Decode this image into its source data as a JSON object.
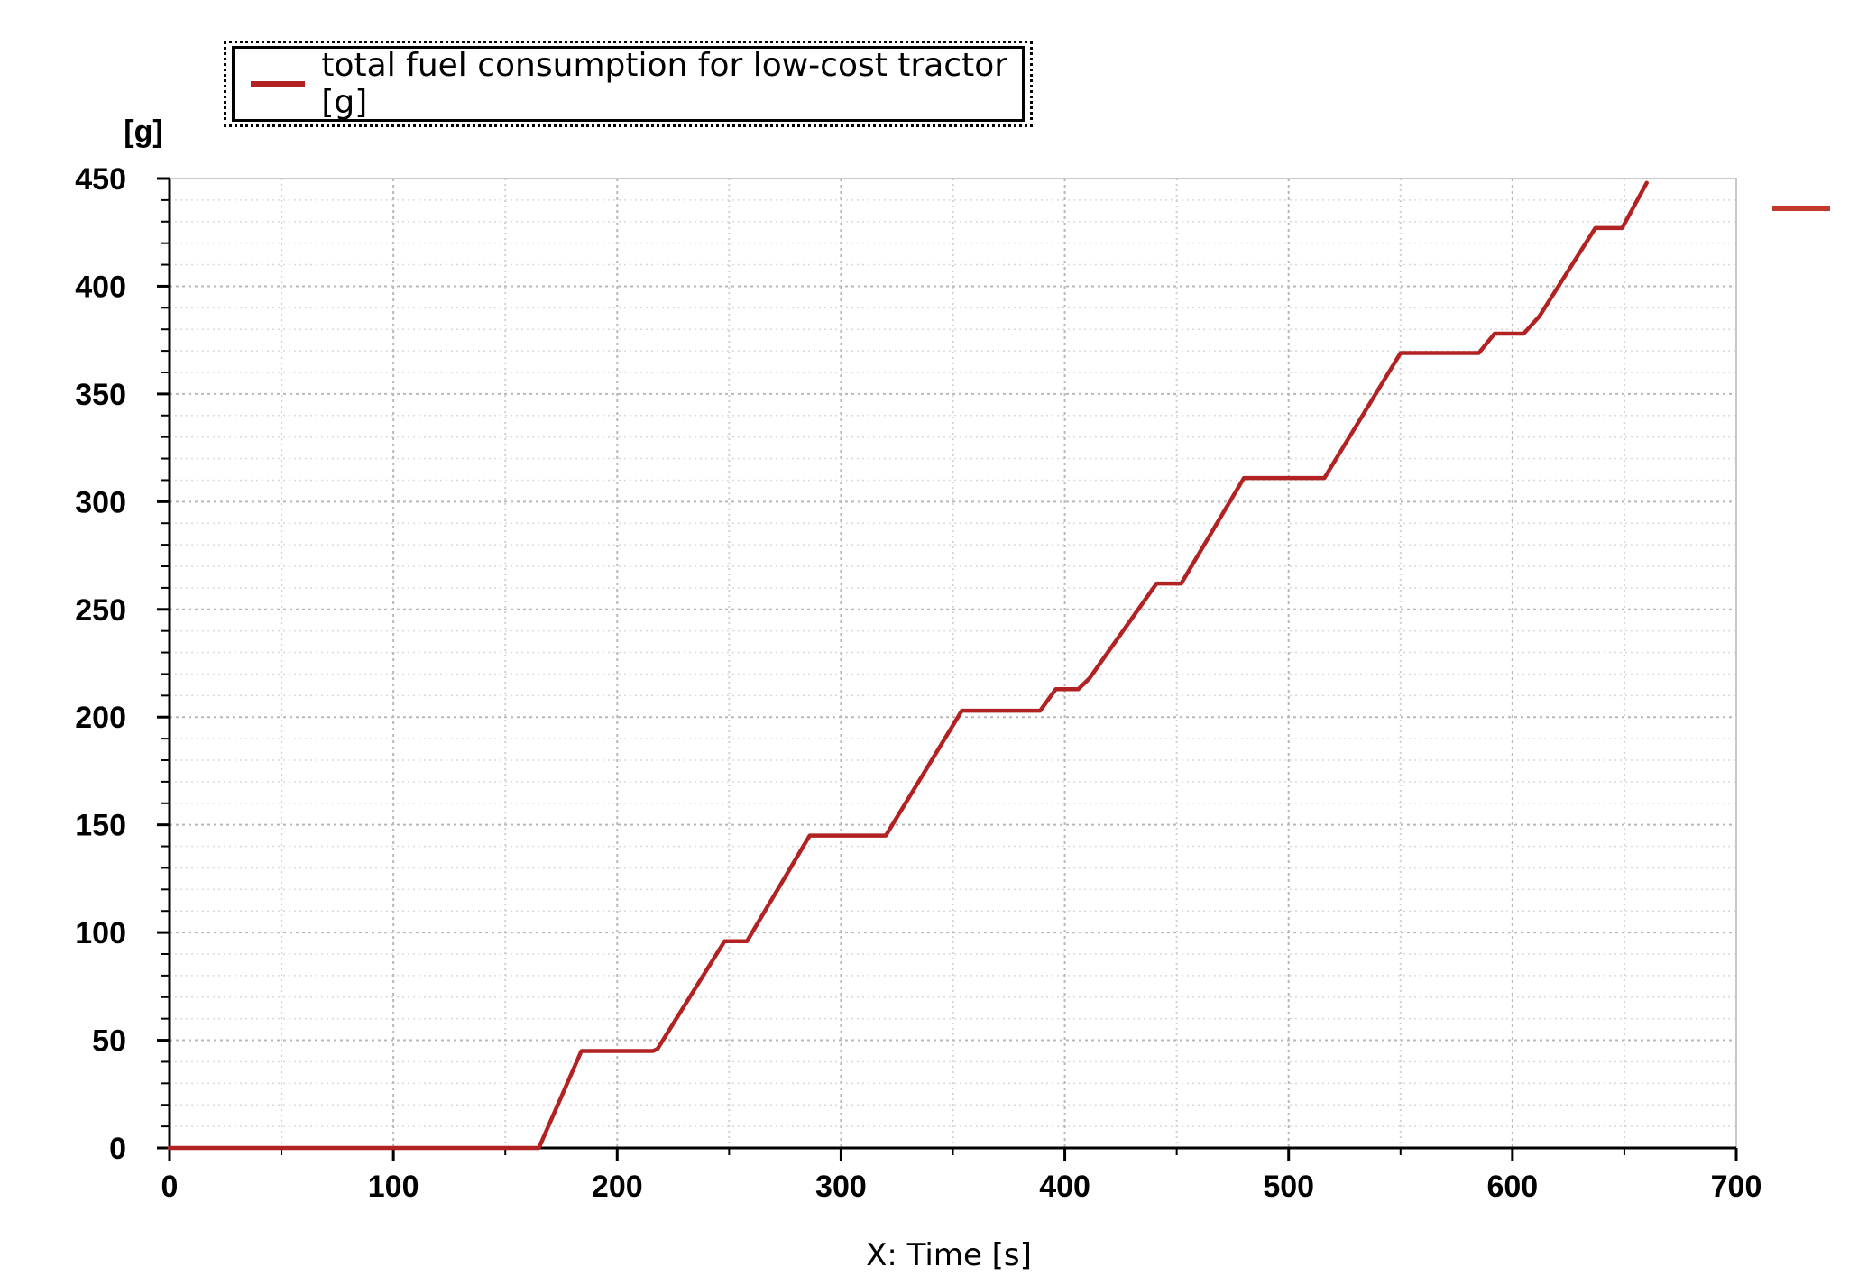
{
  "chart_data": {
    "type": "line",
    "y_unit_label": "[g]",
    "xlabel": "X: Time [s]",
    "xlim": [
      0,
      700
    ],
    "ylim": [
      0,
      450
    ],
    "x_ticks": [
      0,
      100,
      200,
      300,
      400,
      500,
      600,
      700
    ],
    "y_ticks": [
      0,
      50,
      100,
      150,
      200,
      250,
      300,
      350,
      400,
      450
    ],
    "grid": true,
    "legend_position": "top",
    "series": [
      {
        "name": "total fuel consumption for low-cost tractor [g]",
        "color": "#b22222",
        "points": [
          [
            0,
            0
          ],
          [
            165,
            0
          ],
          [
            184,
            45
          ],
          [
            216,
            45
          ],
          [
            218,
            46
          ],
          [
            248,
            96
          ],
          [
            258,
            96
          ],
          [
            286,
            145
          ],
          [
            320,
            145
          ],
          [
            354,
            203
          ],
          [
            389,
            203
          ],
          [
            396,
            213
          ],
          [
            406,
            213
          ],
          [
            411,
            218
          ],
          [
            441,
            262
          ],
          [
            452,
            262
          ],
          [
            480,
            311
          ],
          [
            516,
            311
          ],
          [
            550,
            369
          ],
          [
            585,
            369
          ],
          [
            592,
            378
          ],
          [
            605,
            378
          ],
          [
            612,
            386
          ],
          [
            637,
            427
          ],
          [
            649,
            427
          ],
          [
            660,
            448
          ]
        ]
      }
    ]
  }
}
